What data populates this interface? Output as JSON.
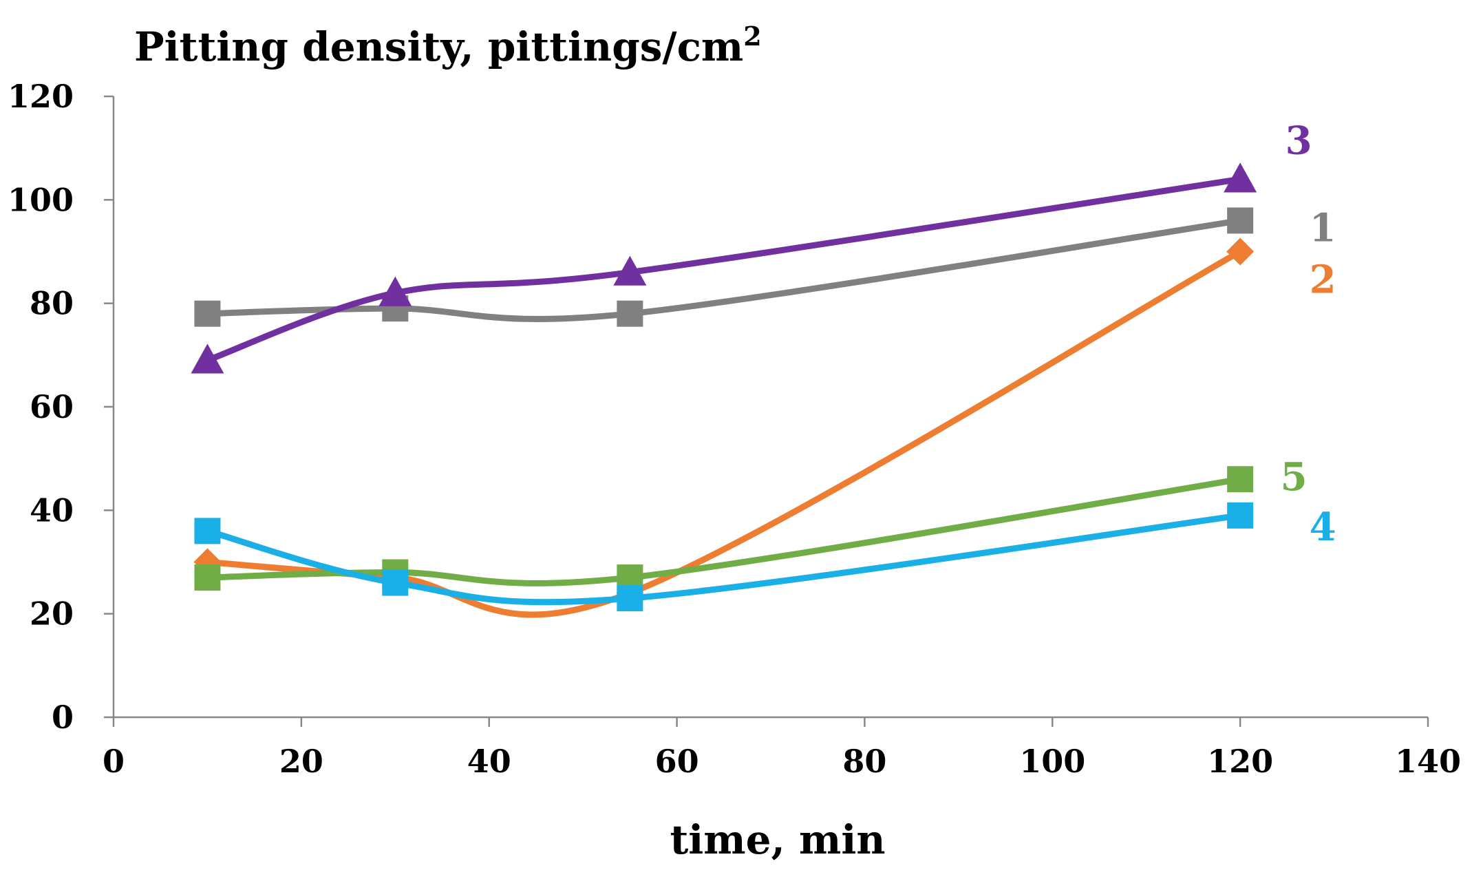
{
  "chart_data": {
    "type": "line",
    "title": "Pitting density, pittings/cm",
    "title_superscript": "2",
    "xlabel": "time, min",
    "ylabel": "",
    "xlim": [
      0,
      140
    ],
    "ylim": [
      0,
      120
    ],
    "x_ticks": [
      0,
      20,
      40,
      60,
      80,
      100,
      120,
      140
    ],
    "y_ticks": [
      0,
      20,
      40,
      60,
      80,
      100,
      120
    ],
    "grid": false,
    "smoothed": true,
    "series": [
      {
        "name": "1",
        "color": "#808080",
        "marker": "square",
        "x": [
          10,
          30,
          55,
          120
        ],
        "values": [
          78,
          79,
          78,
          96
        ]
      },
      {
        "name": "2",
        "color": "#ED7D31",
        "marker": "diamond",
        "x": [
          10,
          30,
          55,
          120
        ],
        "values": [
          30,
          27,
          24,
          90
        ]
      },
      {
        "name": "3",
        "color": "#7030A0",
        "marker": "triangle",
        "x": [
          10,
          30,
          55,
          120
        ],
        "values": [
          69,
          82,
          86,
          104
        ]
      },
      {
        "name": "4",
        "color": "#1AAFE6",
        "marker": "square",
        "x": [
          10,
          30,
          55,
          120
        ],
        "values": [
          36,
          26,
          23,
          39
        ]
      },
      {
        "name": "5",
        "color": "#70AD47",
        "marker": "square",
        "x": [
          10,
          30,
          55,
          120
        ],
        "values": [
          27,
          28,
          27,
          46
        ]
      }
    ]
  }
}
